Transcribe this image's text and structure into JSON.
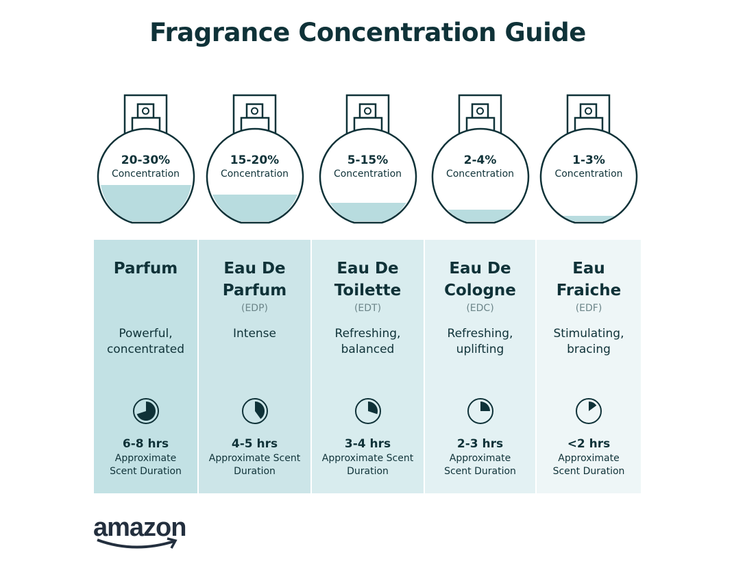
{
  "title": "Fragrance Concentration Guide",
  "colors": {
    "ink": "#0f3238",
    "liquid": "#b8dcdf",
    "panels": [
      "#c2e1e4",
      "#cce5e8",
      "#d8ecee",
      "#e3f1f3",
      "#eef6f7"
    ]
  },
  "columns": [
    {
      "concentration": "20-30%",
      "concentration_label": "Concentration",
      "fill_level": 0.3,
      "name": "Parfum",
      "abbr": "",
      "description": "Powerful, concentrated",
      "duration": "6-8 hrs",
      "duration_label": "Approximate Scent Duration",
      "clock_fraction": 0.7
    },
    {
      "concentration": "15-20%",
      "concentration_label": "Concentration",
      "fill_level": 0.2,
      "name": "Eau De Parfum",
      "abbr": "(EDP)",
      "description": "Intense",
      "duration": "4-5 hrs",
      "duration_label": "Approximate Scent Duration",
      "clock_fraction": 0.4
    },
    {
      "concentration": "5-15%",
      "concentration_label": "Concentration",
      "fill_level": 0.15,
      "name": "Eau De Toilette",
      "abbr": "(EDT)",
      "description": "Refreshing, balanced",
      "duration": "3-4 hrs",
      "duration_label": "Approximate Scent Duration",
      "clock_fraction": 0.3
    },
    {
      "concentration": "2-4%",
      "concentration_label": "Concentration",
      "fill_level": 0.04,
      "name": "Eau De Cologne",
      "abbr": "(EDC)",
      "description": "Refreshing, uplifting",
      "duration": "2-3 hrs",
      "duration_label": "Approximate Scent Duration",
      "clock_fraction": 0.25
    },
    {
      "concentration": "1-3%",
      "concentration_label": "Concentration",
      "fill_level": 0.03,
      "name": "Eau Fraiche",
      "abbr": "(EDF)",
      "description": "Stimulating, bracing",
      "duration": "<2 hrs",
      "duration_label": "Approximate Scent Duration",
      "clock_fraction": 0.15
    }
  ],
  "logo": "amazon"
}
